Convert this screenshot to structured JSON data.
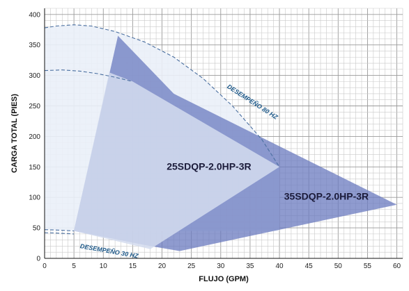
{
  "chart_data": {
    "type": "area",
    "xlabel": "FLUJO (GPM)",
    "ylabel": "CARGA TOTAL (PIES)",
    "xlim": [
      0,
      61
    ],
    "ylim": [
      0,
      410
    ],
    "grid": true,
    "x_ticks": [
      0,
      5,
      10,
      15,
      20,
      25,
      30,
      35,
      40,
      45,
      50,
      55,
      60
    ],
    "y_ticks": [
      0,
      50,
      100,
      150,
      200,
      250,
      300,
      350,
      400
    ],
    "x_minor_step": 1,
    "y_minor_step": 10,
    "regions": [
      {
        "name": "35SDQP-2.0HP-3R",
        "color": "#6a79bf",
        "opacity": 0.75,
        "polygon": [
          [
            5,
            45
          ],
          [
            12.5,
            365
          ],
          [
            22,
            270
          ],
          [
            60,
            88
          ],
          [
            23,
            12
          ],
          [
            17,
            22
          ]
        ],
        "label_at": [
          48,
          96
        ]
      },
      {
        "name": "25SDQP-2.0HP-3R",
        "color": "#d3dcef",
        "opacity": 0.85,
        "polygon": [
          [
            5,
            45
          ],
          [
            11,
            305
          ],
          [
            15,
            290
          ],
          [
            40,
            150
          ],
          [
            18,
            15
          ]
        ],
        "label_at": [
          28,
          145
        ]
      }
    ],
    "curves": [
      {
        "name": "DESEMPEÑO 80 HZ",
        "style": "dashed",
        "color": "#4a6fa0",
        "points": [
          [
            0,
            378
          ],
          [
            2,
            381
          ],
          [
            5,
            383
          ],
          [
            8,
            381
          ],
          [
            12,
            372
          ],
          [
            17,
            355
          ],
          [
            22,
            330
          ],
          [
            27,
            295
          ],
          [
            32,
            250
          ],
          [
            37,
            195
          ],
          [
            40,
            150
          ]
        ],
        "fill": "#eaf0f8",
        "label_at": [
          31,
          280
        ],
        "label_rotate": 33
      },
      {
        "name": "",
        "style": "dashed",
        "color": "#4a6fa0",
        "points": [
          [
            0,
            308
          ],
          [
            3,
            309
          ],
          [
            6,
            307
          ],
          [
            9,
            303
          ],
          [
            12,
            297
          ],
          [
            15,
            290
          ]
        ],
        "fill": "none"
      },
      {
        "name": "DESEMPEÑO 30 HZ",
        "style": "dashed",
        "color": "#4a6fa0",
        "points": [
          [
            0,
            47
          ],
          [
            2,
            46.5
          ],
          [
            4,
            45.5
          ],
          [
            5,
            45
          ]
        ],
        "fill": "none",
        "label_at": [
          6,
          17
        ],
        "label_rotate": 10
      },
      {
        "name": "",
        "style": "dashed",
        "color": "#4a6fa0",
        "points": [
          [
            0,
            42
          ],
          [
            2,
            41.5
          ],
          [
            4,
            40.5
          ],
          [
            5,
            40
          ]
        ],
        "fill": "none"
      }
    ]
  }
}
